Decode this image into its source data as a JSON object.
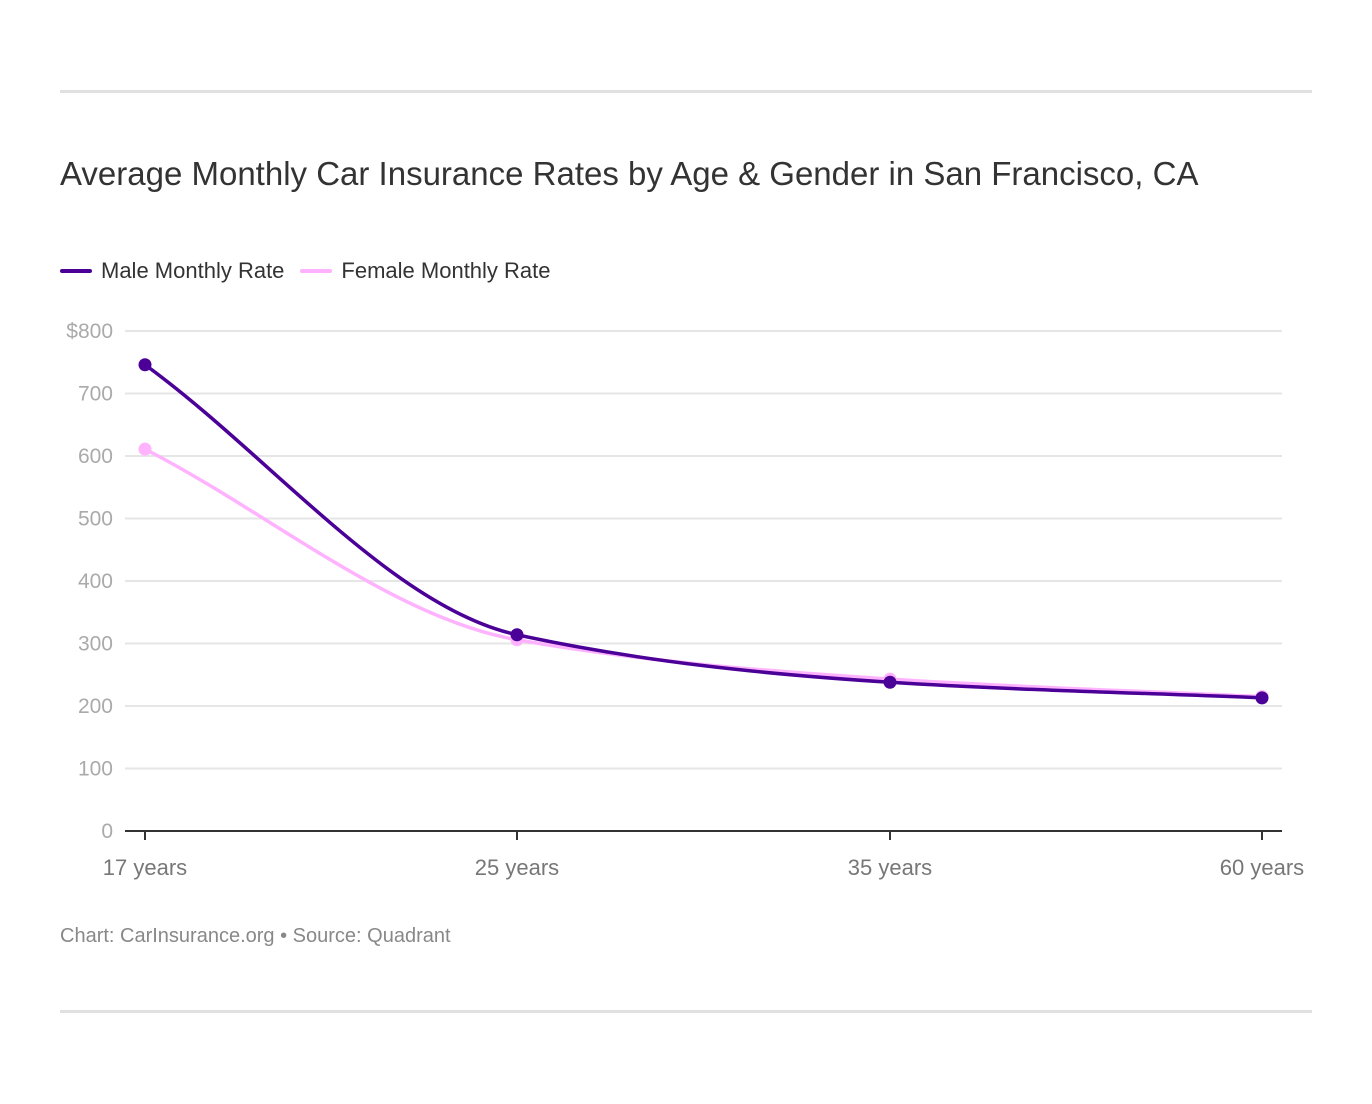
{
  "chart_data": {
    "type": "line",
    "title": "Average Monthly Car Insurance Rates by Age & Gender in San Francisco, CA",
    "categories": [
      "17 years",
      "25 years",
      "35 years",
      "60 years"
    ],
    "series": [
      {
        "name": "Male Monthly Rate",
        "color": "#4b0097",
        "values": [
          746,
          314,
          238,
          213
        ]
      },
      {
        "name": "Female Monthly Rate",
        "color": "#ffb3ff",
        "values": [
          611,
          306,
          243,
          215
        ]
      }
    ],
    "yticks": [
      "0",
      "100",
      "200",
      "300",
      "400",
      "500",
      "600",
      "700",
      "$800"
    ],
    "ylim": [
      0,
      800
    ],
    "grid": true,
    "legend": "top-left",
    "xlabel": "",
    "ylabel": ""
  },
  "footer": "Chart: CarInsurance.org • Source: Quadrant"
}
